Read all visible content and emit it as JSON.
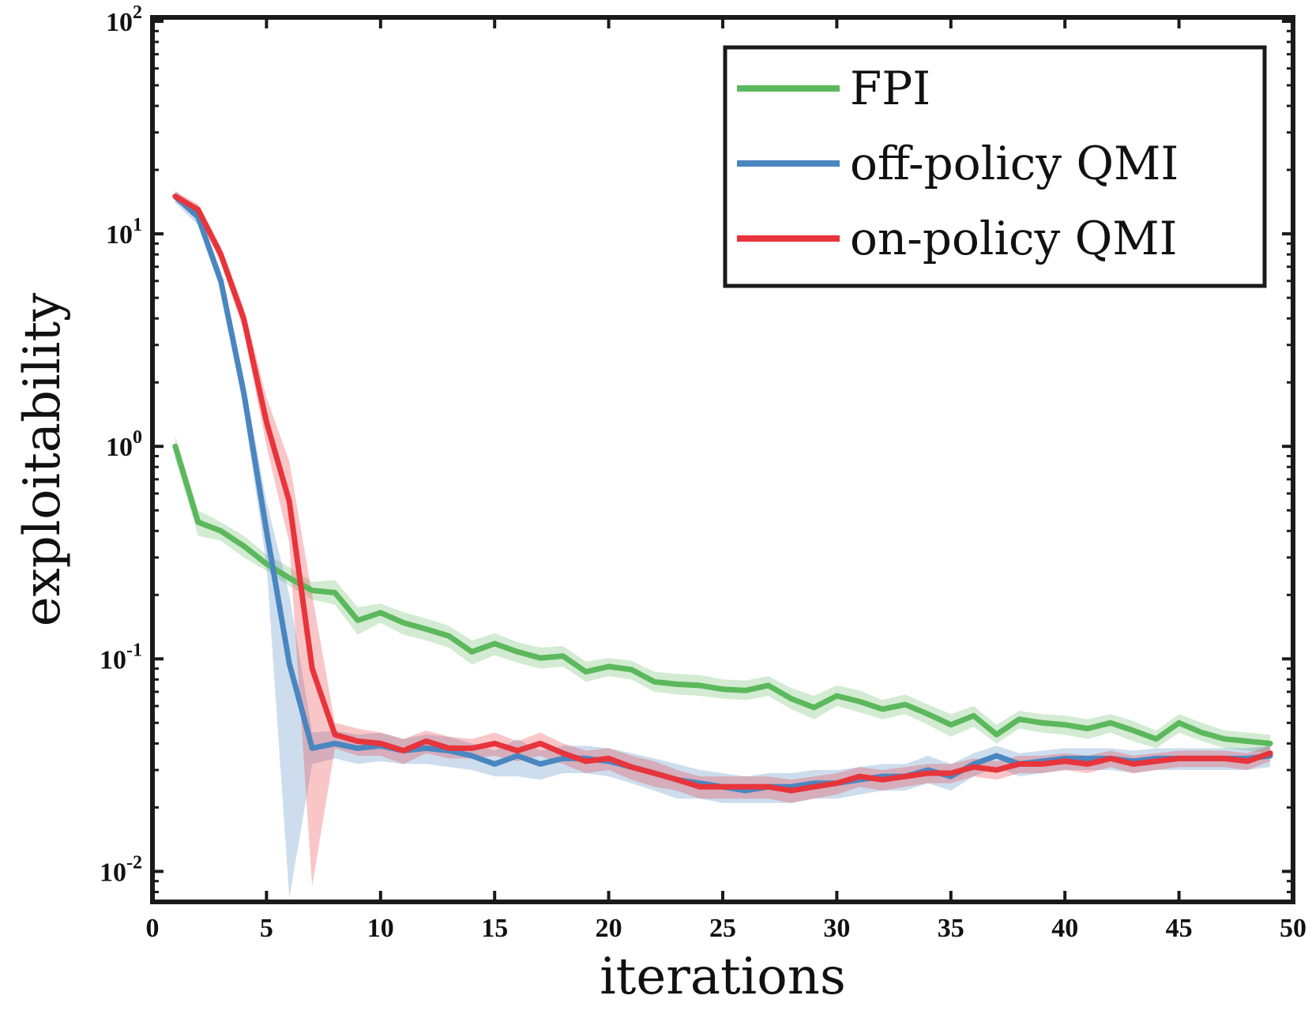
{
  "chart_data": {
    "type": "line",
    "xlabel": "iterations",
    "ylabel": "exploitability",
    "xscale": "linear",
    "yscale": "log",
    "xlim": [
      0,
      50
    ],
    "ylim": [
      0.0075,
      100
    ],
    "xticks": [
      0,
      5,
      10,
      15,
      20,
      25,
      30,
      35,
      40,
      45,
      50
    ],
    "yticks": [
      {
        "value": 0.01,
        "base": "10",
        "exp": "-2"
      },
      {
        "value": 0.1,
        "base": "10",
        "exp": "-1"
      },
      {
        "value": 1,
        "base": "10",
        "exp": "0"
      },
      {
        "value": 10,
        "base": "10",
        "exp": "1"
      },
      {
        "value": 100,
        "base": "10",
        "exp": "2"
      }
    ],
    "grid": false,
    "legend_position": "top-right",
    "series": [
      {
        "name": "FPI",
        "color": "#5cb85c",
        "x": [
          1,
          2,
          3,
          4,
          5,
          6,
          7,
          8,
          9,
          10,
          11,
          12,
          13,
          14,
          15,
          16,
          17,
          18,
          19,
          20,
          21,
          22,
          23,
          24,
          25,
          26,
          27,
          28,
          29,
          30,
          31,
          32,
          33,
          34,
          35,
          36,
          37,
          38,
          39,
          40,
          41,
          42,
          43,
          44,
          45,
          46,
          47,
          48,
          49
        ],
        "values": [
          1.0,
          0.44,
          0.4,
          0.34,
          0.28,
          0.24,
          0.21,
          0.205,
          0.152,
          0.165,
          0.148,
          0.138,
          0.128,
          0.108,
          0.118,
          0.108,
          0.101,
          0.103,
          0.087,
          0.092,
          0.089,
          0.078,
          0.076,
          0.075,
          0.072,
          0.071,
          0.075,
          0.065,
          0.059,
          0.067,
          0.063,
          0.058,
          0.061,
          0.055,
          0.049,
          0.054,
          0.044,
          0.052,
          0.05,
          0.049,
          0.047,
          0.05,
          0.046,
          0.042,
          0.05,
          0.045,
          0.042,
          0.041,
          0.04
        ],
        "lower": [
          0.88,
          0.38,
          0.36,
          0.3,
          0.26,
          0.22,
          0.19,
          0.18,
          0.13,
          0.148,
          0.13,
          0.122,
          0.113,
          0.094,
          0.104,
          0.096,
          0.09,
          0.092,
          0.078,
          0.083,
          0.08,
          0.07,
          0.068,
          0.067,
          0.065,
          0.064,
          0.067,
          0.058,
          0.052,
          0.06,
          0.056,
          0.052,
          0.055,
          0.049,
          0.043,
          0.048,
          0.04,
          0.047,
          0.045,
          0.044,
          0.042,
          0.045,
          0.041,
          0.038,
          0.045,
          0.041,
          0.038,
          0.037,
          0.036
        ],
        "upper": [
          1.12,
          0.5,
          0.44,
          0.38,
          0.31,
          0.27,
          0.23,
          0.235,
          0.175,
          0.182,
          0.166,
          0.155,
          0.143,
          0.122,
          0.132,
          0.12,
          0.113,
          0.115,
          0.097,
          0.101,
          0.098,
          0.087,
          0.085,
          0.084,
          0.08,
          0.079,
          0.083,
          0.073,
          0.067,
          0.075,
          0.071,
          0.064,
          0.068,
          0.061,
          0.055,
          0.06,
          0.049,
          0.057,
          0.055,
          0.054,
          0.052,
          0.055,
          0.051,
          0.046,
          0.055,
          0.05,
          0.046,
          0.045,
          0.044
        ]
      },
      {
        "name": "off-policy QMI",
        "color": "#4a86c0",
        "x": [
          1,
          2,
          3,
          4,
          5,
          6,
          7,
          8,
          9,
          10,
          11,
          12,
          13,
          14,
          15,
          16,
          17,
          18,
          19,
          20,
          21,
          22,
          23,
          24,
          25,
          26,
          27,
          28,
          29,
          30,
          31,
          32,
          33,
          34,
          35,
          36,
          37,
          38,
          39,
          40,
          41,
          42,
          43,
          44,
          45,
          46,
          47,
          48,
          49
        ],
        "values": [
          15.0,
          12.0,
          6.0,
          1.8,
          0.4,
          0.095,
          0.038,
          0.04,
          0.038,
          0.039,
          0.037,
          0.038,
          0.037,
          0.035,
          0.032,
          0.035,
          0.032,
          0.034,
          0.034,
          0.033,
          0.031,
          0.029,
          0.027,
          0.026,
          0.025,
          0.024,
          0.025,
          0.025,
          0.026,
          0.026,
          0.027,
          0.028,
          0.028,
          0.03,
          0.028,
          0.032,
          0.035,
          0.032,
          0.033,
          0.034,
          0.034,
          0.034,
          0.033,
          0.034,
          0.034,
          0.034,
          0.034,
          0.034,
          0.035
        ],
        "lower": [
          14.0,
          11.0,
          5.4,
          1.5,
          0.28,
          0.0075,
          0.032,
          0.034,
          0.032,
          0.033,
          0.032,
          0.032,
          0.031,
          0.03,
          0.028,
          0.028,
          0.027,
          0.029,
          0.029,
          0.028,
          0.026,
          0.024,
          0.022,
          0.022,
          0.021,
          0.021,
          0.021,
          0.021,
          0.022,
          0.022,
          0.023,
          0.024,
          0.024,
          0.026,
          0.024,
          0.028,
          0.031,
          0.028,
          0.029,
          0.03,
          0.03,
          0.03,
          0.029,
          0.03,
          0.03,
          0.03,
          0.03,
          0.03,
          0.031
        ],
        "upper": [
          16.0,
          13.0,
          6.6,
          2.1,
          0.55,
          0.2,
          0.045,
          0.046,
          0.044,
          0.045,
          0.042,
          0.044,
          0.043,
          0.04,
          0.037,
          0.042,
          0.037,
          0.039,
          0.039,
          0.038,
          0.036,
          0.034,
          0.032,
          0.03,
          0.029,
          0.028,
          0.029,
          0.029,
          0.03,
          0.03,
          0.031,
          0.032,
          0.032,
          0.035,
          0.032,
          0.036,
          0.039,
          0.036,
          0.037,
          0.038,
          0.038,
          0.038,
          0.037,
          0.038,
          0.038,
          0.038,
          0.038,
          0.038,
          0.039
        ]
      },
      {
        "name": "on-policy QMI",
        "color": "#e8343b",
        "x": [
          1,
          2,
          3,
          4,
          5,
          6,
          7,
          8,
          9,
          10,
          11,
          12,
          13,
          14,
          15,
          16,
          17,
          18,
          19,
          20,
          21,
          22,
          23,
          24,
          25,
          26,
          27,
          28,
          29,
          30,
          31,
          32,
          33,
          34,
          35,
          36,
          37,
          38,
          39,
          40,
          41,
          42,
          43,
          44,
          45,
          46,
          47,
          48,
          49
        ],
        "values": [
          15.0,
          13.0,
          8.0,
          4.0,
          1.3,
          0.55,
          0.09,
          0.044,
          0.041,
          0.04,
          0.037,
          0.041,
          0.038,
          0.038,
          0.04,
          0.037,
          0.04,
          0.036,
          0.033,
          0.034,
          0.031,
          0.029,
          0.027,
          0.025,
          0.025,
          0.025,
          0.025,
          0.024,
          0.025,
          0.026,
          0.028,
          0.027,
          0.028,
          0.029,
          0.029,
          0.031,
          0.03,
          0.032,
          0.032,
          0.033,
          0.032,
          0.034,
          0.032,
          0.033,
          0.034,
          0.034,
          0.034,
          0.033,
          0.036
        ],
        "lower": [
          14.2,
          12.2,
          7.3,
          3.5,
          1.0,
          0.35,
          0.0085,
          0.038,
          0.035,
          0.035,
          0.032,
          0.036,
          0.034,
          0.034,
          0.035,
          0.033,
          0.035,
          0.032,
          0.029,
          0.03,
          0.027,
          0.025,
          0.024,
          0.022,
          0.022,
          0.022,
          0.022,
          0.021,
          0.022,
          0.023,
          0.025,
          0.024,
          0.025,
          0.026,
          0.026,
          0.028,
          0.027,
          0.029,
          0.029,
          0.03,
          0.029,
          0.031,
          0.029,
          0.03,
          0.031,
          0.031,
          0.031,
          0.03,
          0.033
        ],
        "upper": [
          15.8,
          13.8,
          8.7,
          4.5,
          1.7,
          0.85,
          0.2,
          0.05,
          0.047,
          0.045,
          0.042,
          0.046,
          0.043,
          0.042,
          0.045,
          0.041,
          0.045,
          0.04,
          0.037,
          0.038,
          0.035,
          0.033,
          0.03,
          0.028,
          0.028,
          0.028,
          0.028,
          0.027,
          0.028,
          0.029,
          0.031,
          0.03,
          0.031,
          0.032,
          0.032,
          0.034,
          0.033,
          0.035,
          0.035,
          0.036,
          0.035,
          0.037,
          0.035,
          0.036,
          0.037,
          0.037,
          0.037,
          0.036,
          0.039
        ]
      }
    ]
  }
}
